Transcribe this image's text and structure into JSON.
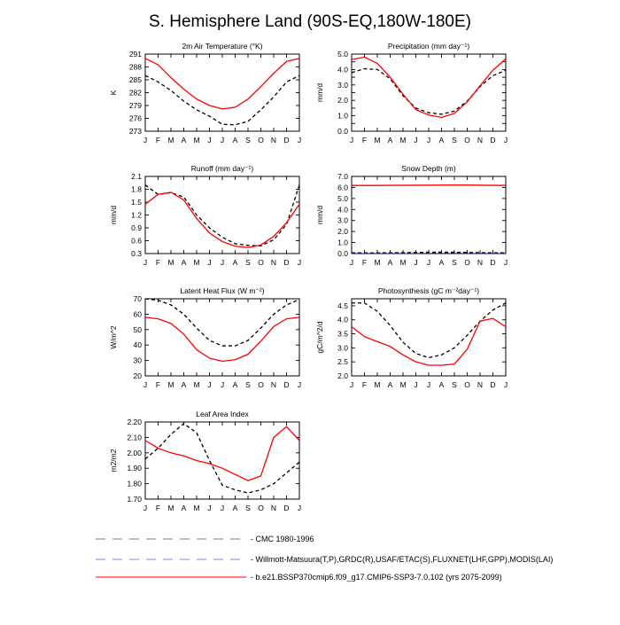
{
  "title": "S. Hemisphere Land (90S-EQ,180W-180E)",
  "months": [
    "J",
    "F",
    "M",
    "A",
    "M",
    "J",
    "J",
    "A",
    "S",
    "O",
    "N",
    "D",
    "J"
  ],
  "colors": {
    "obs1": "#000000",
    "obs2": "#0000ff",
    "model": "#ff0000"
  },
  "legend": [
    {
      "label": "CMC 1980-1996",
      "color": "#7f7f7f",
      "dash": "long"
    },
    {
      "label": "Willmott-Matsuura(T,P),GRDC(R),USAF/ETAC(S),FLUXNET(LHF,GPP),MODIS(LAI)",
      "color": "#7f7fff",
      "dash": "long"
    },
    {
      "label": "b.e21.BSSP370cmip6.f09_g17.CMIP6-SSP3-7.0.102 (yrs 2075-2099)",
      "color": "#ff0000",
      "dash": "solid"
    }
  ],
  "chart_data": [
    {
      "type": "line",
      "title": "2m Air Temperature (°K)",
      "ylabel": "K",
      "ylim": [
        273,
        291
      ],
      "yticks": [
        273,
        276,
        279,
        282,
        285,
        288,
        291
      ],
      "ytick_labels": [
        "273",
        "276",
        "279",
        "282",
        "285",
        "288",
        "291"
      ],
      "series": [
        {
          "style": "obs",
          "values": [
            286,
            284.5,
            282.5,
            280,
            278,
            276.5,
            274.6,
            274.5,
            275.3,
            278,
            281,
            284.5,
            286
          ]
        },
        {
          "style": "model",
          "values": [
            290,
            288.5,
            285.5,
            282.8,
            280.5,
            279,
            278.2,
            278.6,
            280.5,
            283.4,
            286.5,
            289.3,
            290
          ]
        }
      ]
    },
    {
      "type": "line",
      "title": "Precipitation (mm day⁻¹)",
      "ylabel": "mm/d",
      "ylim": [
        0,
        5
      ],
      "yticks": [
        0,
        0.5,
        1,
        1.5,
        2,
        2.5,
        3,
        3.5,
        4,
        4.5,
        5
      ],
      "ytick_labels": [
        "0.0",
        "",
        "1.0",
        "",
        "2.0",
        "",
        "3.0",
        "",
        "4.0",
        "",
        "5.0"
      ],
      "series": [
        {
          "style": "obs",
          "values": [
            3.8,
            4.05,
            4.0,
            3.4,
            2.3,
            1.5,
            1.2,
            1.1,
            1.3,
            1.95,
            2.9,
            3.6,
            3.95
          ]
        },
        {
          "style": "model",
          "values": [
            4.65,
            4.8,
            4.4,
            3.5,
            2.4,
            1.4,
            1.05,
            0.9,
            1.15,
            1.9,
            2.95,
            3.95,
            4.7
          ]
        }
      ]
    },
    {
      "type": "line",
      "title": "Runoff (mm day⁻¹)",
      "ylabel": "mm/d",
      "ylim": [
        0.3,
        2.1
      ],
      "yticks": [
        0.3,
        0.6,
        0.9,
        1.2,
        1.5,
        1.8,
        2.1
      ],
      "ytick_labels": [
        "0.3",
        "0.6",
        "0.9",
        "1.2",
        "1.5",
        "1.8",
        "2.1"
      ],
      "series": [
        {
          "style": "obs",
          "values": [
            1.9,
            1.68,
            1.72,
            1.62,
            1.2,
            0.9,
            0.68,
            0.53,
            0.49,
            0.48,
            0.62,
            0.98,
            1.9
          ]
        },
        {
          "style": "model",
          "values": [
            1.45,
            1.68,
            1.73,
            1.55,
            1.12,
            0.78,
            0.58,
            0.47,
            0.44,
            0.5,
            0.7,
            1.02,
            1.45
          ]
        }
      ]
    },
    {
      "type": "line",
      "title": "Snow Depth (m)",
      "ylabel": "mm/d",
      "ylim": [
        0,
        7
      ],
      "yticks": [
        0,
        1,
        2,
        3,
        4,
        5,
        6,
        7
      ],
      "ytick_labels": [
        "0.0",
        "1.0",
        "2.0",
        "3.0",
        "4.0",
        "5.0",
        "6.0",
        "7.0"
      ],
      "series": [
        {
          "style": "obs",
          "values": [
            0.07,
            0.06,
            0.06,
            0.07,
            0.08,
            0.1,
            0.12,
            0.13,
            0.12,
            0.1,
            0.08,
            0.07,
            0.07
          ]
        },
        {
          "style": "obs2",
          "values": [
            0.02,
            0.02,
            0.02,
            0.02,
            0.03,
            0.04,
            0.05,
            0.05,
            0.04,
            0.03,
            0.02,
            0.02,
            0.02
          ]
        },
        {
          "style": "model",
          "values": [
            6.18,
            6.18,
            6.18,
            6.19,
            6.19,
            6.2,
            6.2,
            6.21,
            6.21,
            6.21,
            6.2,
            6.19,
            6.19
          ]
        }
      ]
    },
    {
      "type": "line",
      "title": "Latent Heat Flux (W m⁻²)",
      "ylabel": "W/m^2",
      "ylim": [
        20,
        70
      ],
      "yticks": [
        20,
        30,
        40,
        50,
        60,
        70
      ],
      "ytick_labels": [
        "20",
        "30",
        "40",
        "50",
        "60",
        "70"
      ],
      "series": [
        {
          "style": "obs",
          "values": [
            70,
            69,
            66,
            60,
            51,
            43,
            39.5,
            39.5,
            43,
            51,
            60,
            66,
            69.5
          ]
        },
        {
          "style": "model",
          "values": [
            58,
            57,
            54,
            47,
            37,
            31.5,
            29.5,
            30.5,
            34,
            42.5,
            52,
            57,
            58
          ]
        }
      ]
    },
    {
      "type": "line",
      "title": "Photosynthesis (gC m⁻²day⁻¹)",
      "ylabel": "gC/m^2/d",
      "ylim": [
        2.0,
        4.75
      ],
      "yticks": [
        2.0,
        2.5,
        3.0,
        3.5,
        4.0,
        4.5
      ],
      "ytick_labels": [
        "2.0",
        "2.5",
        "3.0",
        "3.5",
        "4.0",
        "4.5"
      ],
      "series": [
        {
          "style": "obs",
          "values": [
            4.6,
            4.6,
            4.3,
            3.8,
            3.2,
            2.8,
            2.65,
            2.75,
            3.0,
            3.45,
            3.95,
            4.35,
            4.6
          ]
        },
        {
          "style": "model",
          "values": [
            3.75,
            3.4,
            3.22,
            3.05,
            2.75,
            2.5,
            2.38,
            2.38,
            2.42,
            2.95,
            3.95,
            4.05,
            3.75
          ]
        }
      ]
    },
    {
      "type": "line",
      "title": "Leaf Area Index",
      "ylabel": "m2/m2",
      "ylim": [
        1.7,
        2.2
      ],
      "yticks": [
        1.7,
        1.8,
        1.9,
        2.0,
        2.1,
        2.2
      ],
      "ytick_labels": [
        "1.70",
        "1.80",
        "1.90",
        "2.00",
        "2.10",
        "2.20"
      ],
      "series": [
        {
          "style": "obs",
          "values": [
            1.96,
            2.03,
            2.12,
            2.19,
            2.13,
            1.95,
            1.79,
            1.76,
            1.74,
            1.76,
            1.8,
            1.87,
            1.94
          ]
        },
        {
          "style": "model",
          "values": [
            2.08,
            2.03,
            2.0,
            1.98,
            1.95,
            1.93,
            1.9,
            1.86,
            1.82,
            1.85,
            2.1,
            2.17,
            2.08
          ]
        }
      ]
    }
  ]
}
